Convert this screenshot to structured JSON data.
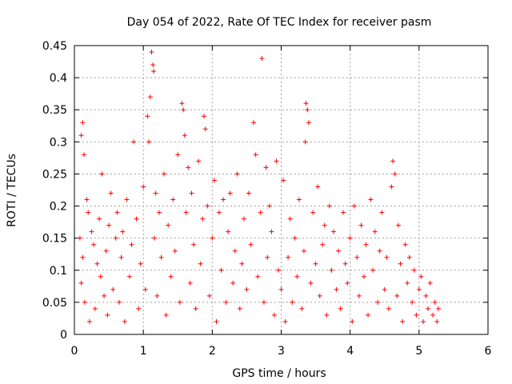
{
  "chart_data": {
    "type": "scatter",
    "title": "Day 054 of 2022, Rate Of TEC Index for receiver pasm",
    "xlabel": "GPS time / hours",
    "ylabel": "ROTI / TECUs",
    "xlim": [
      0,
      6
    ],
    "ylim": [
      0,
      0.45
    ],
    "xticks": [
      "0",
      "1",
      "2",
      "3",
      "4",
      "5",
      "6"
    ],
    "yticks": [
      "0",
      "0.05",
      "0.1",
      "0.15",
      "0.2",
      "0.25",
      "0.3",
      "0.35",
      "0.4",
      "0.45"
    ],
    "grid": true,
    "marker": "plus",
    "color": "#ff0000",
    "series": [
      {
        "x": [
          0.08,
          0.1,
          0.12,
          0.14,
          0.1,
          0.12,
          0.15,
          0.18,
          0.2,
          0.22,
          0.25,
          0.28,
          0.3,
          0.33,
          0.36,
          0.38,
          0.4,
          0.43,
          0.46,
          0.48,
          0.5,
          0.53,
          0.56,
          0.6,
          0.62,
          0.65,
          0.68,
          0.7,
          0.73,
          0.76,
          0.8,
          0.83,
          0.86,
          0.9,
          0.93,
          0.96,
          1.0,
          1.03,
          1.06,
          1.08,
          1.1,
          1.12,
          1.14,
          1.15,
          1.16,
          1.18,
          1.2,
          1.23,
          1.26,
          1.3,
          1.33,
          1.36,
          1.4,
          1.43,
          1.46,
          1.5,
          1.53,
          1.56,
          1.58,
          1.6,
          1.62,
          1.65,
          1.68,
          1.7,
          1.73,
          1.76,
          1.8,
          1.83,
          1.86,
          1.88,
          1.9,
          1.93,
          1.96,
          2.0,
          2.03,
          2.06,
          2.1,
          2.13,
          2.16,
          2.2,
          2.23,
          2.26,
          2.3,
          2.33,
          2.36,
          2.4,
          2.43,
          2.46,
          2.5,
          2.53,
          2.56,
          2.6,
          2.63,
          2.66,
          2.7,
          2.72,
          2.75,
          2.78,
          2.8,
          2.83,
          2.86,
          2.9,
          2.93,
          2.96,
          3.0,
          3.03,
          3.06,
          3.1,
          3.13,
          3.16,
          3.2,
          3.23,
          3.26,
          3.3,
          3.33,
          3.35,
          3.36,
          3.38,
          3.4,
          3.43,
          3.46,
          3.5,
          3.53,
          3.56,
          3.6,
          3.63,
          3.66,
          3.7,
          3.73,
          3.76,
          3.8,
          3.83,
          3.86,
          3.9,
          3.93,
          3.96,
          4.0,
          4.03,
          4.06,
          4.1,
          4.13,
          4.16,
          4.2,
          4.23,
          4.26,
          4.3,
          4.33,
          4.36,
          4.4,
          4.43,
          4.46,
          4.5,
          4.53,
          4.56,
          4.6,
          4.62,
          4.65,
          4.68,
          4.7,
          4.73,
          4.76,
          4.8,
          4.83,
          4.86,
          4.9,
          4.93,
          4.96,
          5.0,
          5.03,
          5.06,
          5.1,
          5.13,
          5.16,
          5.2,
          5.23,
          5.26,
          5.28
        ],
        "y": [
          0.15,
          0.31,
          0.33,
          0.28,
          0.08,
          0.12,
          0.05,
          0.21,
          0.19,
          0.02,
          0.16,
          0.14,
          0.04,
          0.11,
          0.18,
          0.09,
          0.25,
          0.06,
          0.13,
          0.03,
          0.17,
          0.22,
          0.07,
          0.15,
          0.19,
          0.05,
          0.12,
          0.16,
          0.02,
          0.21,
          0.09,
          0.14,
          0.3,
          0.18,
          0.04,
          0.11,
          0.23,
          0.07,
          0.34,
          0.3,
          0.37,
          0.44,
          0.42,
          0.41,
          0.15,
          0.22,
          0.06,
          0.19,
          0.12,
          0.25,
          0.03,
          0.17,
          0.09,
          0.21,
          0.13,
          0.28,
          0.05,
          0.36,
          0.35,
          0.31,
          0.19,
          0.26,
          0.08,
          0.22,
          0.14,
          0.04,
          0.27,
          0.11,
          0.18,
          0.34,
          0.32,
          0.2,
          0.06,
          0.15,
          0.24,
          0.02,
          0.19,
          0.1,
          0.21,
          0.05,
          0.16,
          0.22,
          0.08,
          0.13,
          0.25,
          0.04,
          0.11,
          0.18,
          0.07,
          0.22,
          0.14,
          0.33,
          0.28,
          0.09,
          0.19,
          0.43,
          0.05,
          0.26,
          0.12,
          0.2,
          0.16,
          0.03,
          0.27,
          0.1,
          0.07,
          0.24,
          0.02,
          0.12,
          0.18,
          0.05,
          0.15,
          0.09,
          0.21,
          0.04,
          0.13,
          0.3,
          0.36,
          0.35,
          0.33,
          0.08,
          0.19,
          0.11,
          0.23,
          0.06,
          0.14,
          0.17,
          0.03,
          0.2,
          0.1,
          0.16,
          0.07,
          0.13,
          0.04,
          0.19,
          0.11,
          0.08,
          0.15,
          0.02,
          0.2,
          0.12,
          0.06,
          0.17,
          0.09,
          0.14,
          0.03,
          0.21,
          0.1,
          0.16,
          0.05,
          0.13,
          0.19,
          0.07,
          0.12,
          0.04,
          0.23,
          0.27,
          0.25,
          0.06,
          0.17,
          0.11,
          0.02,
          0.14,
          0.08,
          0.12,
          0.05,
          0.1,
          0.03,
          0.07,
          0.09,
          0.02,
          0.06,
          0.04,
          0.08,
          0.03,
          0.05,
          0.02,
          0.04
        ]
      }
    ]
  }
}
